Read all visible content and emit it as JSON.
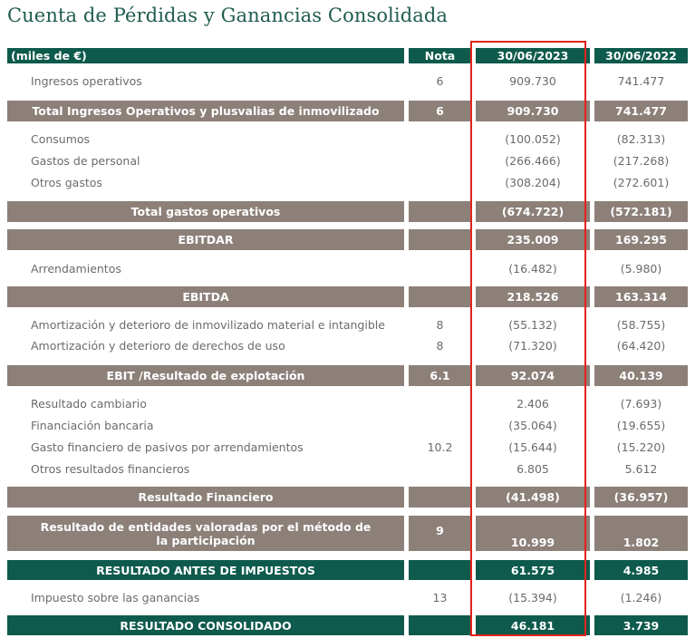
{
  "title": "Cuenta de Pérdidas y Ganancias Consolidada",
  "header": {
    "label": "(miles de €)",
    "nota": "Nota",
    "col_a": "30/06/2023",
    "col_b": "30/06/2022"
  },
  "rows": [
    {
      "label": "Ingresos operativos",
      "nota": "6",
      "a": "909.730",
      "b": "741.477"
    },
    {
      "label": "Total Ingresos Operativos y plusvalias de inmovilizado",
      "nota": "6",
      "a": "909.730",
      "b": "741.477"
    },
    {
      "label": "Consumos",
      "nota": "",
      "a": "(100.052)",
      "b": "(82.313)"
    },
    {
      "label": "Gastos de personal",
      "nota": "",
      "a": "(266.466)",
      "b": "(217.268)"
    },
    {
      "label": "Otros gastos",
      "nota": "",
      "a": "(308.204)",
      "b": "(272.601)"
    },
    {
      "label": "Total gastos operativos",
      "nota": "",
      "a": "(674.722)",
      "b": "(572.181)"
    },
    {
      "label": "EBITDAR",
      "nota": "",
      "a": "235.009",
      "b": "169.295"
    },
    {
      "label": "Arrendamientos",
      "nota": "",
      "a": "(16.482)",
      "b": "(5.980)"
    },
    {
      "label": "EBITDA",
      "nota": "",
      "a": "218.526",
      "b": "163.314"
    },
    {
      "label": "Amortización y deterioro de inmovilizado material e intangible",
      "nota": "8",
      "a": "(55.132)",
      "b": "(58.755)"
    },
    {
      "label": "Amortización y deterioro de derechos de uso",
      "nota": "8",
      "a": "(71.320)",
      "b": "(64.420)"
    },
    {
      "label": "EBIT /Resultado de explotación",
      "nota": "6.1",
      "a": "92.074",
      "b": "40.139"
    },
    {
      "label": "Resultado cambiario",
      "nota": "",
      "a": "2.406",
      "b": "(7.693)"
    },
    {
      "label": "Financiación bancaria",
      "nota": "",
      "a": "(35.064)",
      "b": "(19.655)"
    },
    {
      "label": "Gasto financiero de pasivos por arrendamientos",
      "nota": "10.2",
      "a": "(15.644)",
      "b": "(15.220)"
    },
    {
      "label": "Otros resultados financieros",
      "nota": "",
      "a": "6.805",
      "b": "5.612"
    },
    {
      "label": "Resultado Financiero",
      "nota": "",
      "a": "(41.498)",
      "b": "(36.957)"
    },
    {
      "label": "Resultado de entidades valoradas por el método de la participación",
      "nota": "9",
      "a": "10.999",
      "b": "1.802"
    },
    {
      "label": "RESULTADO ANTES DE IMPUESTOS",
      "nota": "",
      "a": "61.575",
      "b": "4.985"
    },
    {
      "label": "Impuesto sobre las ganancias",
      "nota": "13",
      "a": "(15.394)",
      "b": "(1.246)"
    },
    {
      "label": "RESULTADO CONSOLIDADO",
      "nota": "",
      "a": "46.181",
      "b": "3.739"
    }
  ]
}
